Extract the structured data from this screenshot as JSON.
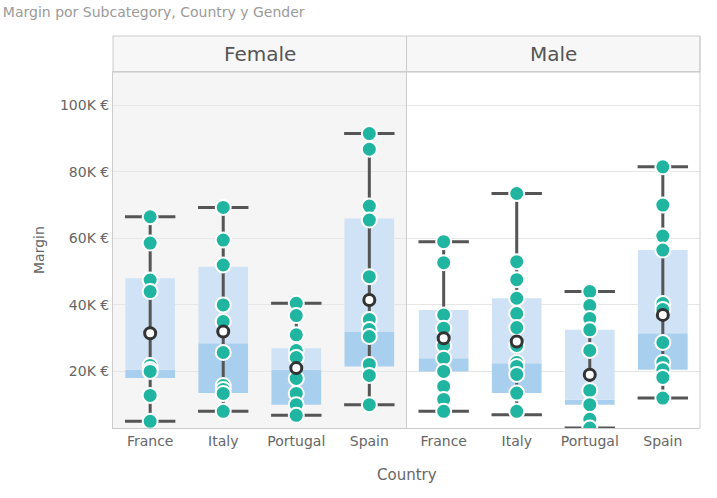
{
  "chart_data": {
    "type": "box",
    "title": "Margin por Subcategory, Country y Gender",
    "x_label": "Country",
    "y_label": "Margin",
    "color": "#1fb5a0",
    "grid": true,
    "ylim": [
      3000,
      110000
    ],
    "yticks": [
      {
        "value": 20000,
        "label": "20K €"
      },
      {
        "value": 40000,
        "label": "40K €"
      },
      {
        "value": 60000,
        "label": "60K €"
      },
      {
        "value": 80000,
        "label": "80K €"
      },
      {
        "value": 100000,
        "label": "100K €"
      }
    ],
    "categories": [
      "France",
      "Italy",
      "Portugal",
      "Spain"
    ],
    "facets": [
      {
        "name": "Female",
        "groups": [
          {
            "category": "France",
            "upperfence": 66500,
            "q3": 48000,
            "median": 20500,
            "q1": 18000,
            "lowerfence": 5000,
            "mean": 31500,
            "points": [
              66500,
              58600,
              47500,
              44000,
              21800,
              20600,
              20000,
              12800,
              5000
            ]
          },
          {
            "category": "Italy",
            "upperfence": 69300,
            "q3": 51500,
            "median": 28500,
            "q1": 13500,
            "lowerfence": 8000,
            "mean": 32000,
            "points": [
              69300,
              59500,
              52000,
              40000,
              35000,
              25700,
              15800,
              14600,
              13400,
              8000
            ]
          },
          {
            "category": "Portugal",
            "upperfence": 40500,
            "q3": 27000,
            "median": 20500,
            "q1": 10000,
            "lowerfence": 6800,
            "mean": 21000,
            "points": [
              40500,
              36800,
              31000,
              26300,
              24200,
              17900,
              13400,
              10000,
              6800
            ]
          },
          {
            "category": "Spain",
            "upperfence": 91500,
            "q3": 66000,
            "median": 32000,
            "q1": 21500,
            "lowerfence": 10000,
            "mean": 41500,
            "points": [
              91500,
              86800,
              69700,
              65500,
              48500,
              35600,
              32600,
              30500,
              22100,
              18800,
              10000
            ]
          }
        ]
      },
      {
        "name": "Male",
        "groups": [
          {
            "category": "France",
            "upperfence": 59000,
            "q3": 38500,
            "median": 24000,
            "q1": 20000,
            "lowerfence": 8000,
            "mean": 30000,
            "points": [
              59000,
              52700,
              37000,
              33000,
              27800,
              24000,
              20000,
              15500,
              11600,
              8000
            ]
          },
          {
            "category": "Italy",
            "upperfence": 73500,
            "q3": 42000,
            "median": 22500,
            "q1": 13500,
            "lowerfence": 7000,
            "mean": 29000,
            "points": [
              73500,
              53000,
              47600,
              42000,
              37400,
              33200,
              27800,
              22700,
              21500,
              19100,
              13500,
              8000
            ]
          },
          {
            "category": "Portugal",
            "upperfence": 44000,
            "q3": 32500,
            "median": 11500,
            "q1": 10000,
            "lowerfence": 3000,
            "mean": 19000,
            "points": [
              44000,
              39800,
              35900,
              32500,
              26300,
              14300,
              10000,
              5600,
              3000
            ]
          },
          {
            "category": "Spain",
            "upperfence": 81500,
            "q3": 56500,
            "median": 31500,
            "q1": 20500,
            "lowerfence": 12000,
            "mean": 37000,
            "points": [
              81500,
              70000,
              60700,
              56500,
              40400,
              38600,
              28700,
              22700,
              20500,
              18200,
              12000
            ]
          }
        ]
      }
    ]
  }
}
